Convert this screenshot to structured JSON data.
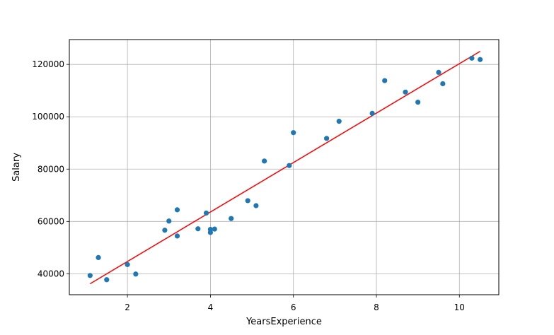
{
  "chart_data": {
    "type": "scatter",
    "title": "",
    "xlabel": "YearsExperience",
    "ylabel": "Salary",
    "xlim": [
      0.6,
      10.95
    ],
    "ylim": [
      32000,
      129500
    ],
    "grid": true,
    "xticks": [
      2,
      4,
      6,
      8,
      10
    ],
    "yticks": [
      40000,
      60000,
      80000,
      100000,
      120000
    ],
    "xtick_labels": [
      "2",
      "4",
      "6",
      "8",
      "10"
    ],
    "ytick_labels": [
      "40000",
      "60000",
      "80000",
      "100000",
      "120000"
    ],
    "series": [
      {
        "type": "scatter",
        "color": "#1f77b4",
        "points": [
          {
            "x": 1.1,
            "y": 39343
          },
          {
            "x": 1.3,
            "y": 46205
          },
          {
            "x": 1.5,
            "y": 37731
          },
          {
            "x": 2.0,
            "y": 43525
          },
          {
            "x": 2.2,
            "y": 39891
          },
          {
            "x": 2.9,
            "y": 56642
          },
          {
            "x": 3.0,
            "y": 60150
          },
          {
            "x": 3.2,
            "y": 54445
          },
          {
            "x": 3.2,
            "y": 64445
          },
          {
            "x": 3.7,
            "y": 57189
          },
          {
            "x": 3.9,
            "y": 63218
          },
          {
            "x": 4.0,
            "y": 55794
          },
          {
            "x": 4.0,
            "y": 56957
          },
          {
            "x": 4.1,
            "y": 57081
          },
          {
            "x": 4.5,
            "y": 61111
          },
          {
            "x": 4.9,
            "y": 67938
          },
          {
            "x": 5.1,
            "y": 66029
          },
          {
            "x": 5.3,
            "y": 83088
          },
          {
            "x": 5.9,
            "y": 81363
          },
          {
            "x": 6.0,
            "y": 93940
          },
          {
            "x": 6.8,
            "y": 91738
          },
          {
            "x": 7.1,
            "y": 98273
          },
          {
            "x": 7.9,
            "y": 101302
          },
          {
            "x": 8.2,
            "y": 113812
          },
          {
            "x": 8.7,
            "y": 109431
          },
          {
            "x": 9.0,
            "y": 105582
          },
          {
            "x": 9.5,
            "y": 116969
          },
          {
            "x": 9.6,
            "y": 112635
          },
          {
            "x": 10.3,
            "y": 122391
          },
          {
            "x": 10.5,
            "y": 121872
          }
        ]
      },
      {
        "type": "line",
        "color": "#ff0000",
        "points": [
          {
            "x": 1.1,
            "y": 36188
          },
          {
            "x": 10.5,
            "y": 125016
          }
        ]
      }
    ]
  }
}
